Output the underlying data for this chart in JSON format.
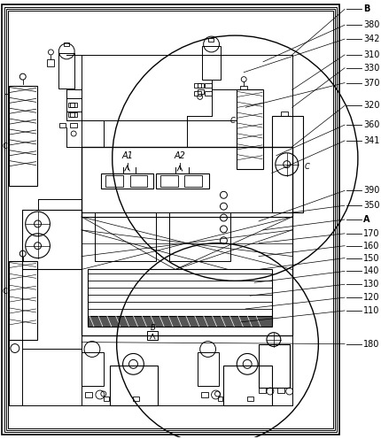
{
  "bg_color": "#ffffff",
  "line_color": "#000000",
  "figsize": [
    4.31,
    4.96
  ],
  "dpi": 100,
  "right_labels": [
    [
      "B",
      8
    ],
    [
      "380",
      26
    ],
    [
      "342",
      42
    ],
    [
      "310",
      60
    ],
    [
      "330",
      75
    ],
    [
      "370",
      92
    ],
    [
      "320",
      118
    ],
    [
      "360",
      140
    ],
    [
      "341",
      158
    ],
    [
      "390",
      215
    ],
    [
      "350",
      232
    ],
    [
      "A",
      248
    ],
    [
      "170",
      264
    ],
    [
      "160",
      278
    ],
    [
      "150",
      292
    ],
    [
      "140",
      307
    ],
    [
      "130",
      322
    ],
    [
      "120",
      337
    ],
    [
      "110",
      352
    ],
    [
      "180",
      390
    ]
  ]
}
